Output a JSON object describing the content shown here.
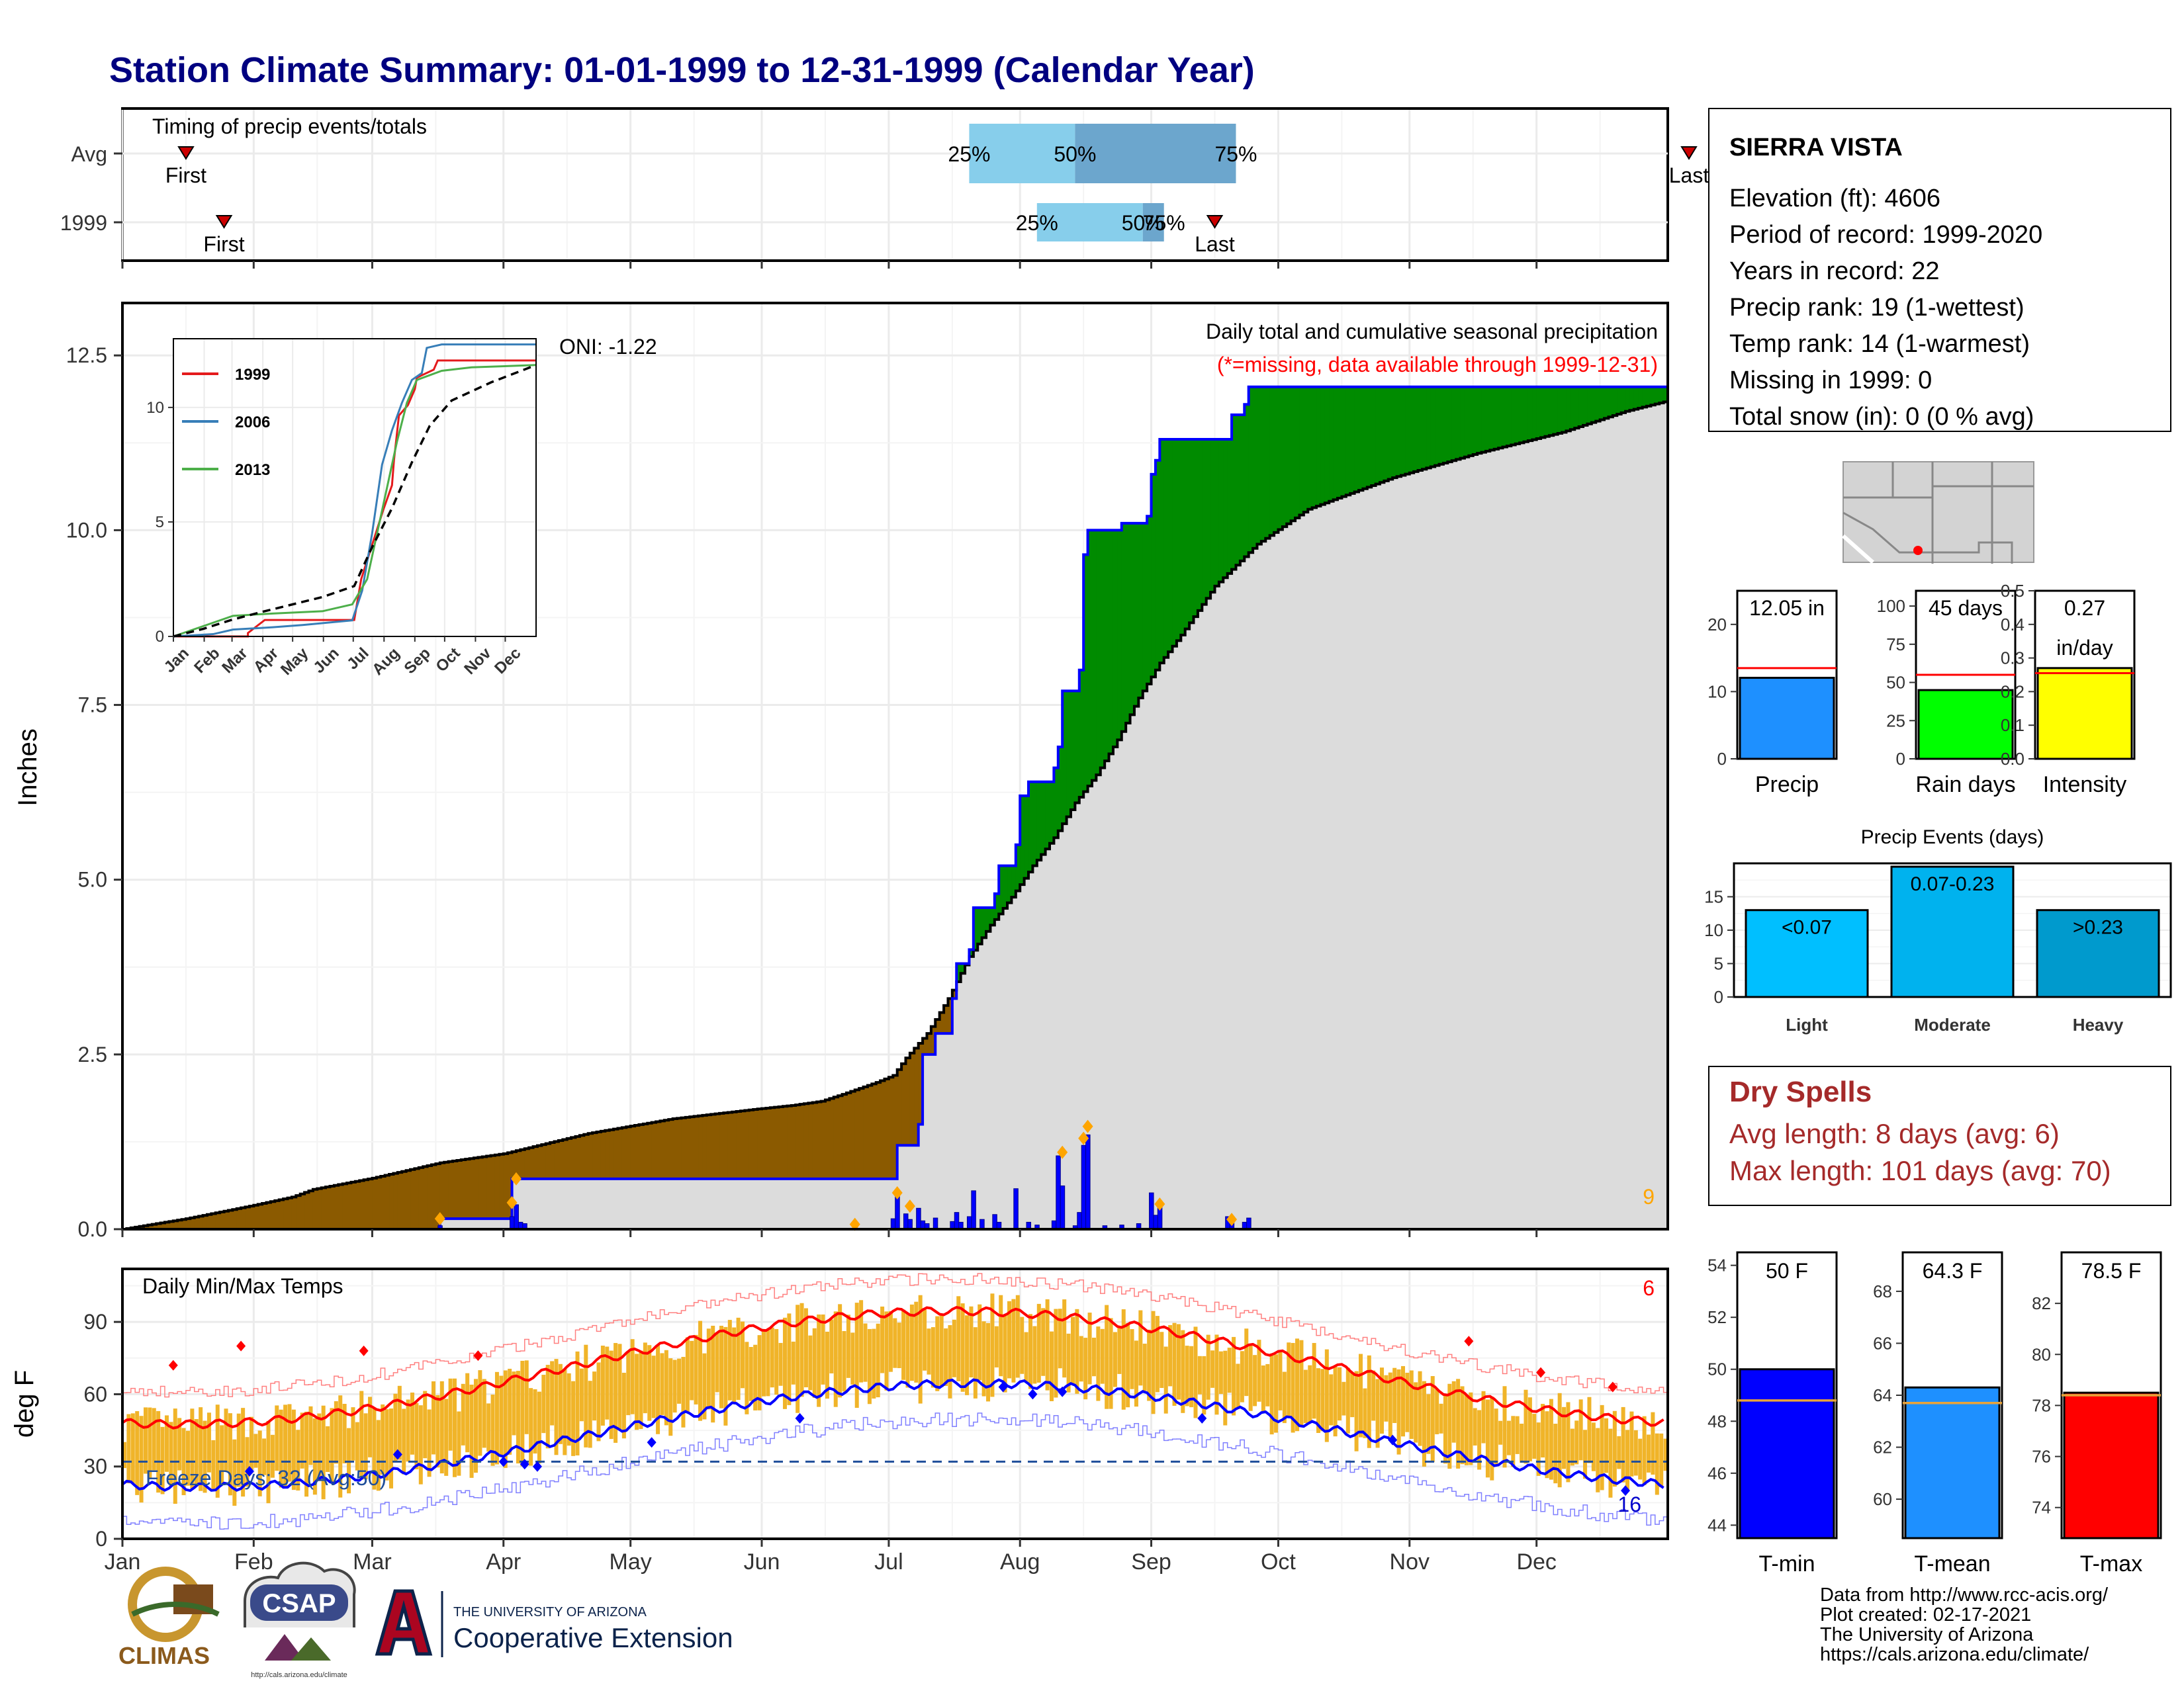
{
  "title": "Station Climate Summary: 01-01-1999 to 12-31-1999 (Calendar Year)",
  "timing": {
    "label": "Timing of precip events/totals",
    "rows": [
      "Avg",
      "1999"
    ],
    "first_label": "First",
    "last_label": "Last",
    "avg": {
      "first": 15,
      "last": 370,
      "p25": 200,
      "p50": 225,
      "p75": 263
    },
    "year": {
      "first": 24,
      "last": 258,
      "p25": 216,
      "p50": 241,
      "p75": 246
    },
    "p25_label": "25%",
    "p50_label": "50%",
    "p75_label": "75%"
  },
  "months": [
    "Jan",
    "Feb",
    "Mar",
    "Apr",
    "May",
    "Jun",
    "Jul",
    "Aug",
    "Sep",
    "Oct",
    "Nov",
    "Dec"
  ],
  "precip": {
    "ylabel": "Inches",
    "yticks": [
      "0.0",
      "2.5",
      "5.0",
      "7.5",
      "10.0",
      "12.5"
    ],
    "ylim": [
      0,
      13.25
    ],
    "oni_label": "ONI: -1.22",
    "note1": "Daily total and cumulative seasonal precipitation",
    "note2": "(*=missing, data available through 1999-12-31)",
    "corner_count": "9",
    "daily_bars": [
      [
        75,
        0.05
      ],
      [
        92,
        0.18
      ],
      [
        93,
        0.35
      ],
      [
        94,
        0.1
      ],
      [
        95,
        0.08
      ],
      [
        173,
        0.04
      ],
      [
        182,
        0.15
      ],
      [
        183,
        0.48
      ],
      [
        185,
        0.22
      ],
      [
        186,
        0.14
      ],
      [
        188,
        0.3
      ],
      [
        189,
        0.12
      ],
      [
        190,
        0.08
      ],
      [
        192,
        0.16
      ],
      [
        196,
        0.11
      ],
      [
        197,
        0.24
      ],
      [
        198,
        0.1
      ],
      [
        200,
        0.18
      ],
      [
        201,
        0.55
      ],
      [
        203,
        0.14
      ],
      [
        206,
        0.21
      ],
      [
        207,
        0.1
      ],
      [
        211,
        0.58
      ],
      [
        214,
        0.1
      ],
      [
        216,
        0.06
      ],
      [
        220,
        0.12
      ],
      [
        221,
        1.05
      ],
      [
        222,
        0.62
      ],
      [
        225,
        0.05
      ],
      [
        226,
        0.24
      ],
      [
        227,
        1.2
      ],
      [
        228,
        1.35
      ],
      [
        232,
        0.05
      ],
      [
        236,
        0.06
      ],
      [
        240,
        0.08
      ],
      [
        243,
        0.52
      ],
      [
        244,
        0.2
      ],
      [
        245,
        0.32
      ],
      [
        261,
        0.18
      ],
      [
        262,
        0.14
      ],
      [
        265,
        0.1
      ],
      [
        266,
        0.16
      ]
    ],
    "diamonds": [
      [
        75,
        0.15
      ],
      [
        92,
        0.38
      ],
      [
        93,
        0.72
      ],
      [
        173,
        0.07
      ],
      [
        183,
        0.52
      ],
      [
        186,
        0.33
      ],
      [
        222,
        1.1
      ],
      [
        227,
        1.3
      ],
      [
        228,
        1.47
      ],
      [
        245,
        0.36
      ],
      [
        262,
        0.14
      ]
    ],
    "avg_cum": [
      [
        0,
        0
      ],
      [
        15,
        0.15
      ],
      [
        30,
        0.33
      ],
      [
        40,
        0.46
      ],
      [
        45,
        0.57
      ],
      [
        59,
        0.73
      ],
      [
        75,
        0.95
      ],
      [
        90,
        1.08
      ],
      [
        110,
        1.37
      ],
      [
        130,
        1.58
      ],
      [
        150,
        1.72
      ],
      [
        158,
        1.77
      ],
      [
        165,
        1.83
      ],
      [
        170,
        1.93
      ],
      [
        178,
        2.1
      ],
      [
        182,
        2.2
      ],
      [
        185,
        2.45
      ],
      [
        190,
        2.8
      ],
      [
        195,
        3.3
      ],
      [
        200,
        3.9
      ],
      [
        205,
        4.35
      ],
      [
        210,
        4.75
      ],
      [
        215,
        5.2
      ],
      [
        220,
        5.6
      ],
      [
        225,
        6.1
      ],
      [
        230,
        6.5
      ],
      [
        235,
        7.0
      ],
      [
        240,
        7.6
      ],
      [
        245,
        8.1
      ],
      [
        250,
        8.5
      ],
      [
        258,
        9.2
      ],
      [
        268,
        9.8
      ],
      [
        280,
        10.3
      ],
      [
        300,
        10.75
      ],
      [
        320,
        11.1
      ],
      [
        340,
        11.4
      ],
      [
        355,
        11.7
      ],
      [
        365,
        11.85
      ]
    ],
    "year_cum": [
      [
        0,
        0
      ],
      [
        75,
        0.0
      ],
      [
        75,
        0.15
      ],
      [
        91,
        0.15
      ],
      [
        92,
        0.72
      ],
      [
        93,
        0.72
      ],
      [
        182,
        0.72
      ],
      [
        183,
        1.2
      ],
      [
        186,
        1.2
      ],
      [
        188,
        1.5
      ],
      [
        189,
        2.5
      ],
      [
        190,
        2.5
      ],
      [
        192,
        2.8
      ],
      [
        196,
        3.3
      ],
      [
        197,
        3.8
      ],
      [
        200,
        4.0
      ],
      [
        201,
        4.6
      ],
      [
        206,
        4.8
      ],
      [
        207,
        5.2
      ],
      [
        211,
        5.5
      ],
      [
        212,
        6.2
      ],
      [
        214,
        6.4
      ],
      [
        220,
        6.6
      ],
      [
        221,
        6.9
      ],
      [
        222,
        7.7
      ],
      [
        226,
        8.0
      ],
      [
        227,
        9.65
      ],
      [
        228,
        10.0
      ],
      [
        236,
        10.1
      ],
      [
        242,
        10.2
      ],
      [
        243,
        10.8
      ],
      [
        244,
        11.0
      ],
      [
        245,
        11.3
      ],
      [
        261,
        11.3
      ],
      [
        262,
        11.65
      ],
      [
        265,
        11.8
      ],
      [
        266,
        12.05
      ],
      [
        365,
        12.05
      ]
    ]
  },
  "inset": {
    "yticks": [
      "0",
      "5",
      "10"
    ],
    "months": [
      "Jan",
      "Feb",
      "Mar",
      "Apr",
      "May",
      "Jun",
      "Jul",
      "Aug",
      "Sep",
      "Oct",
      "Nov",
      "Dec"
    ],
    "series": [
      {
        "name": "1999",
        "color": "#e41a1c",
        "points": [
          [
            0,
            0
          ],
          [
            75,
            0
          ],
          [
            75,
            0.15
          ],
          [
            92,
            0.72
          ],
          [
            182,
            0.72
          ],
          [
            189,
            2.5
          ],
          [
            200,
            4.0
          ],
          [
            211,
            5.5
          ],
          [
            220,
            6.6
          ],
          [
            222,
            7.7
          ],
          [
            227,
            9.65
          ],
          [
            236,
            10.1
          ],
          [
            243,
            10.8
          ],
          [
            245,
            11.3
          ],
          [
            262,
            11.65
          ],
          [
            266,
            12.05
          ],
          [
            365,
            12.05
          ]
        ]
      },
      {
        "name": "2006",
        "color": "#377eb8",
        "points": [
          [
            0,
            0
          ],
          [
            40,
            0.1
          ],
          [
            60,
            0.3
          ],
          [
            100,
            0.4
          ],
          [
            130,
            0.5
          ],
          [
            180,
            0.7
          ],
          [
            190,
            2.0
          ],
          [
            200,
            4.5
          ],
          [
            210,
            7.5
          ],
          [
            220,
            9.0
          ],
          [
            230,
            10.2
          ],
          [
            240,
            11.2
          ],
          [
            250,
            11.5
          ],
          [
            255,
            12.6
          ],
          [
            270,
            12.75
          ],
          [
            365,
            12.75
          ]
        ]
      },
      {
        "name": "2013",
        "color": "#4daf4a",
        "points": [
          [
            0,
            0
          ],
          [
            20,
            0.3
          ],
          [
            40,
            0.6
          ],
          [
            60,
            0.9
          ],
          [
            100,
            1.0
          ],
          [
            150,
            1.1
          ],
          [
            180,
            1.4
          ],
          [
            195,
            2.5
          ],
          [
            205,
            4.5
          ],
          [
            215,
            6.5
          ],
          [
            225,
            8.5
          ],
          [
            235,
            10.2
          ],
          [
            245,
            11.2
          ],
          [
            270,
            11.6
          ],
          [
            300,
            11.75
          ],
          [
            365,
            11.85
          ]
        ]
      }
    ],
    "avg_points": [
      [
        0,
        0
      ],
      [
        30,
        0.33
      ],
      [
        59,
        0.73
      ],
      [
        90,
        1.08
      ],
      [
        150,
        1.72
      ],
      [
        182,
        2.2
      ],
      [
        200,
        3.9
      ],
      [
        220,
        5.6
      ],
      [
        240,
        7.6
      ],
      [
        258,
        9.2
      ],
      [
        280,
        10.3
      ],
      [
        320,
        11.1
      ],
      [
        365,
        11.85
      ]
    ]
  },
  "station": {
    "name": "SIERRA VISTA",
    "lines": [
      "Elevation (ft): 4606",
      "Period of record: 1999-2020",
      "Years in record: 22",
      "Precip rank: 19 (1-wettest)",
      "Temp rank: 14 (1-warmest)",
      "Missing in 1999: 0",
      "Total snow (in): 0 (0 % avg)"
    ]
  },
  "mini_bars": [
    {
      "label": "Precip",
      "value_label": "12.05 in",
      "value": 12.05,
      "avg": 13.5,
      "max": 25,
      "ticks": [
        "0",
        "10",
        "20"
      ],
      "tick_vals": [
        0,
        10,
        20
      ],
      "color": "#1e90ff"
    },
    {
      "label": "Rain days",
      "value_label": "45 days",
      "value": 45,
      "avg": 55,
      "max": 110,
      "ticks": [
        "0",
        "25",
        "50",
        "75",
        "100"
      ],
      "tick_vals": [
        0,
        25,
        50,
        75,
        100
      ],
      "color": "#00ff00"
    },
    {
      "label": "Intensity",
      "value_label": "0.27",
      "value_label2": "in/day",
      "value": 0.27,
      "avg": 0.255,
      "max": 0.5,
      "ticks": [
        "0.0",
        "0.1",
        "0.2",
        "0.3",
        "0.4",
        "0.5"
      ],
      "tick_vals": [
        0,
        0.1,
        0.2,
        0.3,
        0.4,
        0.5
      ],
      "color": "#ffff00"
    }
  ],
  "events": {
    "title": "Precip Events (days)",
    "ticks": [
      "0",
      "5",
      "10",
      "15"
    ],
    "bars": [
      {
        "label": "Light",
        "inner": "<0.07",
        "value": 13,
        "color": "#00bfff"
      },
      {
        "label": "Moderate",
        "inner": "0.07-0.23",
        "value": 19.5,
        "color": "#00b2ee"
      },
      {
        "label": "Heavy",
        "inner": ">0.23",
        "value": 13,
        "color": "#009acd"
      }
    ]
  },
  "dry_spells": {
    "title": "Dry Spells",
    "line1": "Avg length: 8 days (avg: 6)",
    "line2": "Max length: 101 days (avg: 70)"
  },
  "temps": {
    "title": "Daily Min/Max Temps",
    "ylabel": "deg F",
    "yticks": [
      "0",
      "30",
      "60",
      "90"
    ],
    "freeze_label": "Freeze Days: 32 (Avg:50)",
    "count_red": "6",
    "count_blue": "16",
    "freeze_line": 32
  },
  "temp_bars": [
    {
      "label": "T-min",
      "value_label": "50 F",
      "value": 50,
      "avg": 48.8,
      "min": 43.5,
      "max": 54.5,
      "ticks": [
        "44",
        "46",
        "48",
        "50",
        "52",
        "54"
      ],
      "tick_vals": [
        44,
        46,
        48,
        50,
        52,
        54
      ],
      "color": "#0000ff"
    },
    {
      "label": "T-mean",
      "value_label": "64.3 F",
      "value": 64.3,
      "avg": 63.7,
      "min": 58.5,
      "max": 69.5,
      "ticks": [
        "60",
        "62",
        "64",
        "66",
        "68"
      ],
      "tick_vals": [
        60,
        62,
        64,
        66,
        68
      ],
      "color": "#1e90ff"
    },
    {
      "label": "T-max",
      "value_label": "78.5 F",
      "value": 78.5,
      "avg": 78.4,
      "min": 72.8,
      "max": 84,
      "ticks": [
        "74",
        "76",
        "78",
        "80",
        "82"
      ],
      "tick_vals": [
        74,
        76,
        78,
        80,
        82
      ],
      "color": "#ff0000"
    }
  ],
  "footer": {
    "lines": [
      "Data from http://www.rcc-acis.org/",
      "Plot created: 02-17-2021",
      "The University of Arizona",
      "https://cals.arizona.edu/climate/"
    ],
    "climas": "CLIMAS",
    "csap": "CSAP",
    "csap_url": "http://cals.arizona.edu/climate",
    "ua_small": "THE UNIVERSITY OF ARIZONA",
    "ua_big": "Cooperative Extension"
  }
}
